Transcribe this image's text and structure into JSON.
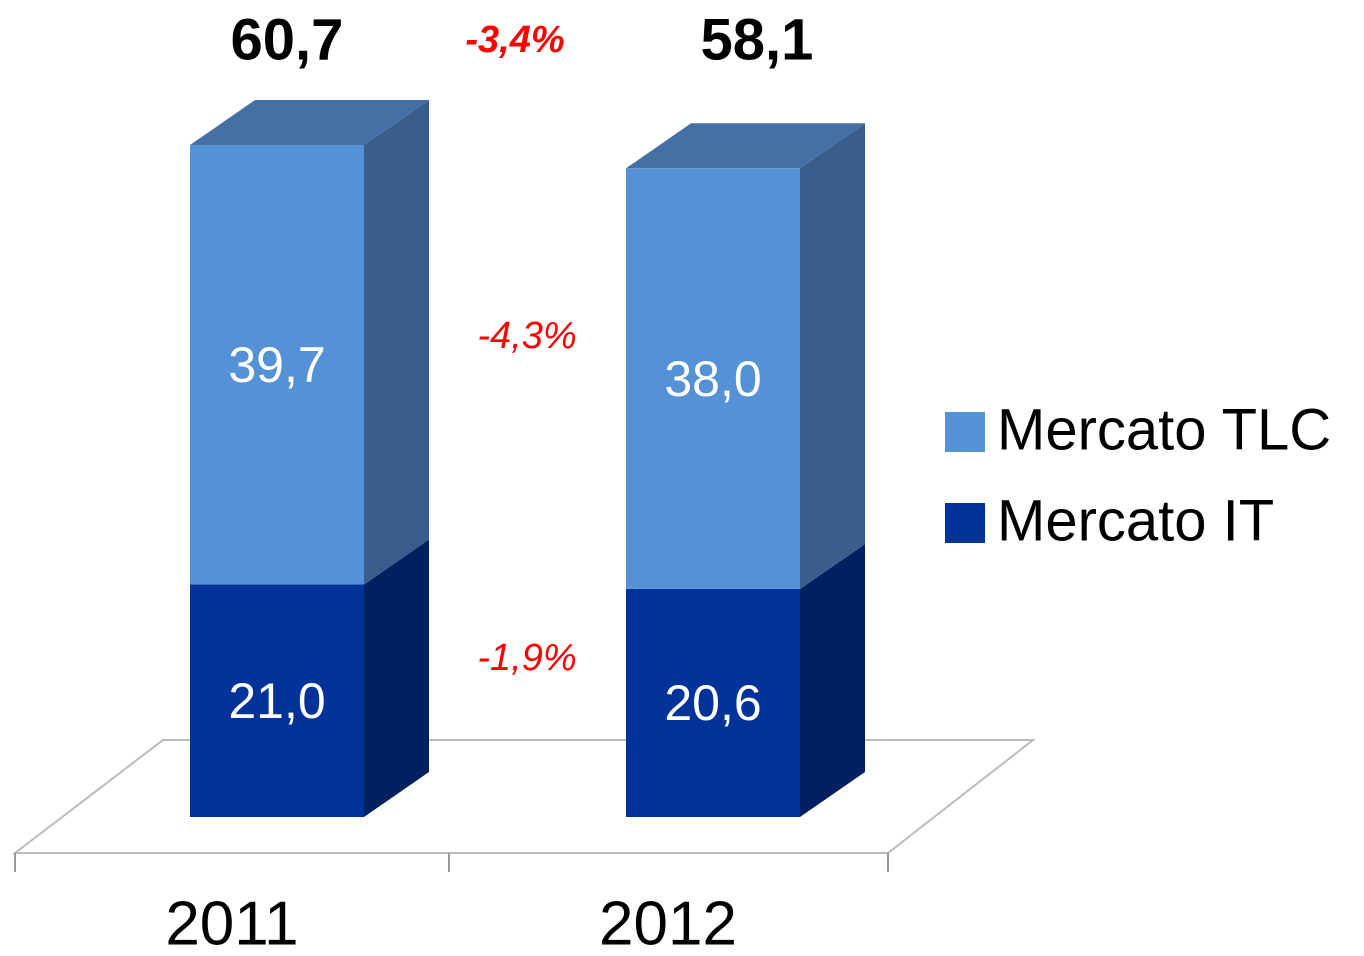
{
  "chart_data": {
    "type": "bar3d_stacked",
    "categories": [
      "2011",
      "2012"
    ],
    "series": [
      {
        "name": "Mercato IT",
        "color": "#003399",
        "side_color": "#00205f",
        "top_color": "#002a7a",
        "values": [
          21.0,
          20.6
        ],
        "value_labels": [
          "21,0",
          "20,6"
        ]
      },
      {
        "name": "Mercato TLC",
        "color": "#5591d6",
        "side_color": "#3a5e8c",
        "top_color": "#4470a6",
        "values": [
          39.7,
          38.0
        ],
        "value_labels": [
          "39,7",
          "38,0"
        ]
      }
    ],
    "totals": [
      60.7,
      58.1
    ],
    "total_labels": [
      "60,7",
      "58,1"
    ],
    "annotations": [
      "-3,4%",
      "-4,3%",
      "-1,9%"
    ]
  }
}
